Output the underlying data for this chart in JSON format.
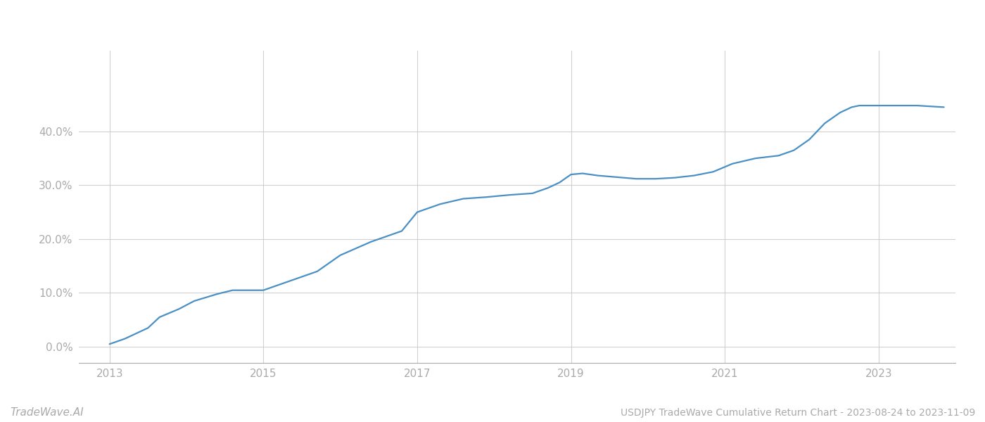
{
  "title": "USDJPY TradeWave Cumulative Return Chart - 2023-08-24 to 2023-11-09",
  "watermark": "TradeWave.AI",
  "line_color": "#4a90c4",
  "background_color": "#ffffff",
  "grid_color": "#cccccc",
  "x_years": [
    2013.0,
    2013.2,
    2013.5,
    2013.65,
    2013.9,
    2014.1,
    2014.4,
    2014.6,
    2014.75,
    2015.0,
    2015.3,
    2015.7,
    2016.0,
    2016.4,
    2016.8,
    2017.0,
    2017.3,
    2017.6,
    2017.9,
    2018.2,
    2018.5,
    2018.7,
    2018.85,
    2019.0,
    2019.15,
    2019.35,
    2019.6,
    2019.85,
    2020.1,
    2020.35,
    2020.6,
    2020.85,
    2021.1,
    2021.4,
    2021.7,
    2021.9,
    2022.1,
    2022.3,
    2022.5,
    2022.65,
    2022.75,
    2023.0,
    2023.5,
    2023.85
  ],
  "y_values": [
    0.5,
    1.5,
    3.5,
    5.5,
    7.0,
    8.5,
    9.8,
    10.5,
    10.5,
    10.5,
    12.0,
    14.0,
    17.0,
    19.5,
    21.5,
    25.0,
    26.5,
    27.5,
    27.8,
    28.2,
    28.5,
    29.5,
    30.5,
    32.0,
    32.2,
    31.8,
    31.5,
    31.2,
    31.2,
    31.4,
    31.8,
    32.5,
    34.0,
    35.0,
    35.5,
    36.5,
    38.5,
    41.5,
    43.5,
    44.5,
    44.8,
    44.8,
    44.8,
    44.5
  ],
  "xlim": [
    2012.6,
    2024.0
  ],
  "ylim": [
    -3,
    55
  ],
  "yticks": [
    0.0,
    10.0,
    20.0,
    30.0,
    40.0
  ],
  "xticks": [
    2013,
    2015,
    2017,
    2019,
    2021,
    2023
  ],
  "tick_label_color": "#aaaaaa",
  "axis_label_fontsize": 11,
  "watermark_fontsize": 11,
  "title_fontsize": 10,
  "line_width": 1.6
}
